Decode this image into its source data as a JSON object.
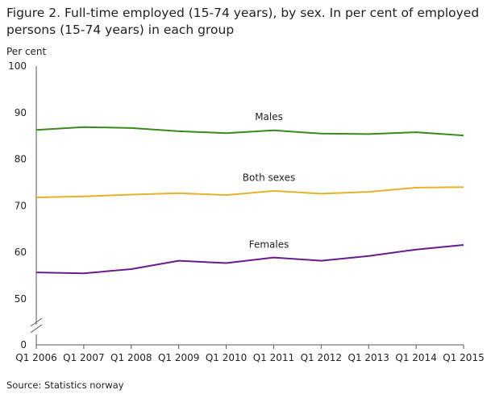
{
  "chart_data": {
    "type": "line",
    "title": "Figure 2. Full-time employed (15-74 years), by sex. In per cent of employed persons (15-74 years) in each group",
    "ylabel": "Per cent",
    "xlabel": "",
    "source": "Source: Statistics norway",
    "categories": [
      "Q1 2006",
      "Q1 2007",
      "Q1 2008",
      "Q1 2009",
      "Q1 2010",
      "Q1 2011",
      "Q1 2012",
      "Q1 2013",
      "Q1 2014",
      "Q1 2015"
    ],
    "y_ticks": [
      0,
      50,
      60,
      70,
      80,
      90,
      100
    ],
    "ylim": [
      0,
      100
    ],
    "axis_break": true,
    "grid": false,
    "legend": "inline labels",
    "series": [
      {
        "name": "Males",
        "color": "#3a8a1c",
        "values": [
          86.3,
          86.9,
          86.7,
          86.0,
          85.6,
          86.2,
          85.5,
          85.4,
          85.8,
          85.1
        ]
      },
      {
        "name": "Both sexes",
        "color": "#e6b22a",
        "values": [
          71.8,
          72.0,
          72.4,
          72.7,
          72.3,
          73.2,
          72.6,
          73.0,
          73.9,
          74.0
        ]
      },
      {
        "name": "Females",
        "color": "#6a1b8c",
        "values": [
          55.7,
          55.5,
          56.4,
          58.2,
          57.7,
          58.9,
          58.2,
          59.2,
          60.6,
          61.6
        ]
      }
    ]
  }
}
